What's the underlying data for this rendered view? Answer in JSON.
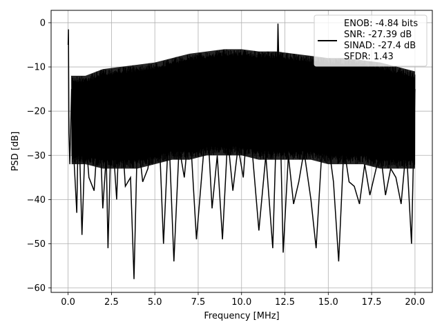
{
  "chart_data": {
    "type": "line",
    "title": "",
    "xlabel": "Frequency [MHz]",
    "ylabel": "PSD [dB]",
    "xlim": [
      -0.98,
      21.0
    ],
    "ylim": [
      -61.0,
      2.8
    ],
    "xticks": [
      0.0,
      2.5,
      5.0,
      7.5,
      10.0,
      12.5,
      15.0,
      17.5,
      20.0
    ],
    "xtick_labels": [
      "0.0",
      "2.5",
      "5.0",
      "7.5",
      "10.0",
      "12.5",
      "15.0",
      "17.5",
      "20.0"
    ],
    "yticks": [
      0,
      -10,
      -20,
      -30,
      -40,
      -50,
      -60
    ],
    "ytick_labels": [
      "0",
      "−10",
      "−20",
      "−30",
      "−40",
      "−50",
      "−60"
    ],
    "grid": true,
    "legend_position": "top-right",
    "series_color": "#000000",
    "legend_lines": [
      "ENOB: -4.84 bits",
      "SNR: -27.39 dB",
      "SINAD: -27.4 dB",
      "SFDR: 1.43"
    ],
    "series": [
      {
        "x": [
          0.0,
          0.02,
          0.05,
          0.1,
          0.2,
          0.3,
          0.5,
          0.6,
          0.8,
          1.0,
          1.2,
          1.5,
          1.8,
          2.0,
          2.2,
          2.3,
          2.5,
          2.8,
          3.0,
          3.3,
          3.6,
          3.8,
          4.0,
          4.3,
          4.6,
          5.0,
          5.3,
          5.5,
          5.8,
          6.1,
          6.4,
          6.7,
          7.0,
          7.4,
          7.8,
          8.0,
          8.3,
          8.6,
          8.9,
          9.2,
          9.5,
          9.8,
          10.1,
          10.4,
          10.7,
          11.0,
          11.4,
          11.8,
          12.0,
          12.1,
          12.4,
          12.7,
          13.0,
          13.3,
          13.6,
          14.0,
          14.3,
          14.6,
          15.0,
          15.3,
          15.6,
          15.9,
          16.2,
          16.5,
          16.8,
          17.1,
          17.4,
          17.7,
          18.0,
          18.3,
          18.6,
          18.9,
          19.2,
          19.5,
          19.8,
          20.0
        ],
        "y": [
          -5,
          -1.5,
          -25,
          -32,
          -15,
          -28,
          -43,
          -20,
          -48,
          -25,
          -35,
          -38,
          -20,
          -42,
          -30,
          -51,
          -22,
          -40,
          -18,
          -37,
          -35,
          -58,
          -25,
          -36,
          -33,
          -22,
          -30,
          -50,
          -24,
          -54,
          -28,
          -35,
          -22,
          -49,
          -30,
          -20,
          -42,
          -30,
          -49,
          -26,
          -38,
          -28,
          -35,
          -19,
          -33,
          -47,
          -30,
          -51,
          -25,
          -0.2,
          -52,
          -30,
          -41,
          -36,
          -29,
          -40,
          -51,
          -31,
          -27,
          -36,
          -54,
          -28,
          -36,
          -37,
          -41,
          -32,
          -39,
          -34,
          -29,
          -39,
          -33,
          -35,
          -41,
          -28,
          -50,
          -15
        ]
      }
    ],
    "envelope": {
      "x": [
        0.2,
        1.0,
        2.0,
        3.0,
        4.0,
        5.0,
        6.0,
        7.0,
        8.0,
        9.0,
        10.0,
        11.0,
        12.0,
        13.0,
        14.0,
        15.0,
        16.0,
        17.0,
        18.0,
        19.0,
        20.0
      ],
      "upper": [
        -12,
        -12,
        -10.5,
        -10,
        -9.5,
        -9,
        -8,
        -7,
        -6.5,
        -6,
        -6,
        -6.5,
        -6.5,
        -7,
        -7.5,
        -8,
        -8,
        -8.5,
        -9,
        -10,
        -11
      ],
      "lower": [
        -32,
        -32,
        -33,
        -33,
        -33,
        -32,
        -31,
        -31,
        -30,
        -30,
        -30,
        -31,
        -31,
        -31,
        -31,
        -32,
        -32,
        -32,
        -33,
        -33,
        -33
      ]
    }
  }
}
